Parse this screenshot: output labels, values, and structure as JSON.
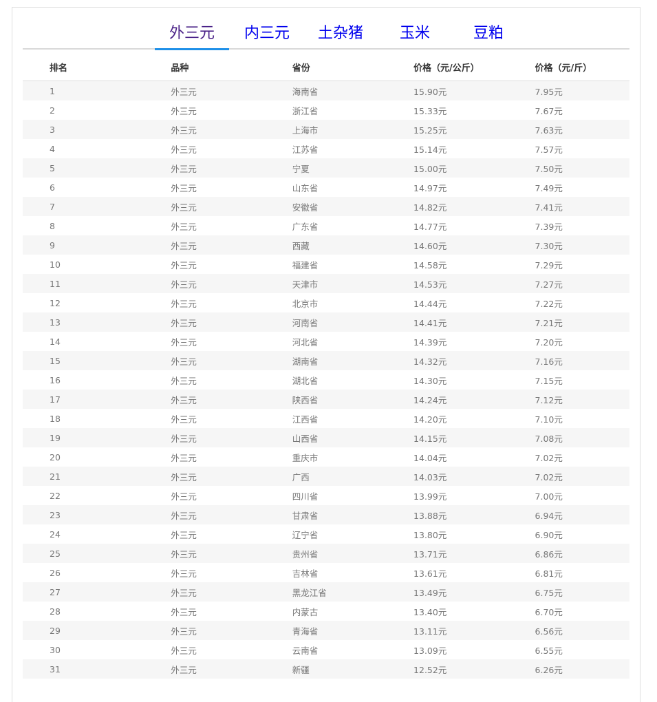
{
  "tabs": [
    {
      "label": "外三元",
      "active": true
    },
    {
      "label": "内三元"
    },
    {
      "label": "土杂猪"
    },
    {
      "label": "玉米"
    },
    {
      "label": "豆粕"
    }
  ],
  "colors": {
    "active_tab_text": "#4b2388",
    "tab_text": "#0000ee",
    "active_underline": "#1e90e8",
    "stripe": "#f6f6f6"
  },
  "table": {
    "headers": [
      "排名",
      "品种",
      "省份",
      "价格（元/公斤）",
      "价格（元/斤）"
    ],
    "rows": [
      [
        "1",
        "外三元",
        "海南省",
        "15.90元",
        "7.95元"
      ],
      [
        "2",
        "外三元",
        "浙江省",
        "15.33元",
        "7.67元"
      ],
      [
        "3",
        "外三元",
        "上海市",
        "15.25元",
        "7.63元"
      ],
      [
        "4",
        "外三元",
        "江苏省",
        "15.14元",
        "7.57元"
      ],
      [
        "5",
        "外三元",
        "宁夏",
        "15.00元",
        "7.50元"
      ],
      [
        "6",
        "外三元",
        "山东省",
        "14.97元",
        "7.49元"
      ],
      [
        "7",
        "外三元",
        "安徽省",
        "14.82元",
        "7.41元"
      ],
      [
        "8",
        "外三元",
        "广东省",
        "14.77元",
        "7.39元"
      ],
      [
        "9",
        "外三元",
        "西藏",
        "14.60元",
        "7.30元"
      ],
      [
        "10",
        "外三元",
        "福建省",
        "14.58元",
        "7.29元"
      ],
      [
        "11",
        "外三元",
        "天津市",
        "14.53元",
        "7.27元"
      ],
      [
        "12",
        "外三元",
        "北京市",
        "14.44元",
        "7.22元"
      ],
      [
        "13",
        "外三元",
        "河南省",
        "14.41元",
        "7.21元"
      ],
      [
        "14",
        "外三元",
        "河北省",
        "14.39元",
        "7.20元"
      ],
      [
        "15",
        "外三元",
        "湖南省",
        "14.32元",
        "7.16元"
      ],
      [
        "16",
        "外三元",
        "湖北省",
        "14.30元",
        "7.15元"
      ],
      [
        "17",
        "外三元",
        "陕西省",
        "14.24元",
        "7.12元"
      ],
      [
        "18",
        "外三元",
        "江西省",
        "14.20元",
        "7.10元"
      ],
      [
        "19",
        "外三元",
        "山西省",
        "14.15元",
        "7.08元"
      ],
      [
        "20",
        "外三元",
        "重庆市",
        "14.04元",
        "7.02元"
      ],
      [
        "21",
        "外三元",
        "广西",
        "14.03元",
        "7.02元"
      ],
      [
        "22",
        "外三元",
        "四川省",
        "13.99元",
        "7.00元"
      ],
      [
        "23",
        "外三元",
        "甘肃省",
        "13.88元",
        "6.94元"
      ],
      [
        "24",
        "外三元",
        "辽宁省",
        "13.80元",
        "6.90元"
      ],
      [
        "25",
        "外三元",
        "贵州省",
        "13.71元",
        "6.86元"
      ],
      [
        "26",
        "外三元",
        "吉林省",
        "13.61元",
        "6.81元"
      ],
      [
        "27",
        "外三元",
        "黑龙江省",
        "13.49元",
        "6.75元"
      ],
      [
        "28",
        "外三元",
        "内蒙古",
        "13.40元",
        "6.70元"
      ],
      [
        "29",
        "外三元",
        "青海省",
        "13.11元",
        "6.56元"
      ],
      [
        "30",
        "外三元",
        "云南省",
        "13.09元",
        "6.55元"
      ],
      [
        "31",
        "外三元",
        "新疆",
        "12.52元",
        "6.26元"
      ]
    ]
  }
}
